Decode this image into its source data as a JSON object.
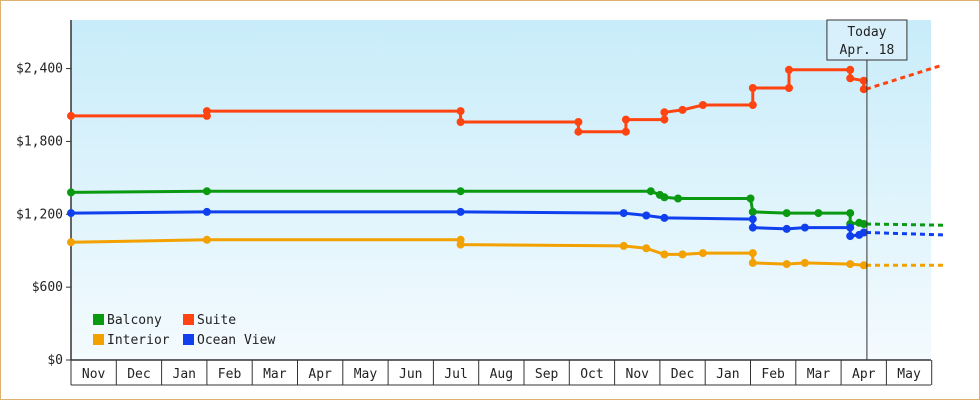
{
  "chart_data": {
    "type": "line",
    "title": "",
    "xlabel": "",
    "ylabel": "",
    "ylim": [
      0,
      2800
    ],
    "y_ticks": [
      "$0",
      "$600",
      "$1,200",
      "$1,800",
      "$2,400"
    ],
    "y_tick_values": [
      0,
      600,
      1200,
      1800,
      2400
    ],
    "x_domain": [
      "Oct 30",
      "May 31"
    ],
    "months": [
      "Nov",
      "Dec",
      "Jan",
      "Feb",
      "Mar",
      "Apr",
      "May",
      "Jun",
      "Jul",
      "Aug",
      "Sep",
      "Oct",
      "Nov",
      "Dec",
      "Jan",
      "Feb",
      "Mar",
      "Apr",
      "May"
    ],
    "today": {
      "label": "Today",
      "date": "Apr. 18",
      "month_index": 17,
      "day_fraction": 0.57
    },
    "grid": false,
    "legend_position": "bottom-left",
    "series": [
      {
        "name": "Suite",
        "color": "#ff4411",
        "points": [
          [
            0,
            2010
          ],
          [
            3,
            2010
          ],
          [
            3,
            2050
          ],
          [
            8.6,
            2050
          ],
          [
            8.6,
            1960
          ],
          [
            11.2,
            1960
          ],
          [
            11.2,
            1880
          ],
          [
            12.25,
            1880
          ],
          [
            12.25,
            1980
          ],
          [
            13.1,
            1980
          ],
          [
            13.1,
            2040
          ],
          [
            13.5,
            2060
          ],
          [
            13.95,
            2100
          ],
          [
            15.05,
            2100
          ],
          [
            15.05,
            2240
          ],
          [
            15.85,
            2240
          ],
          [
            15.85,
            2390
          ],
          [
            17.2,
            2390
          ],
          [
            17.2,
            2320
          ],
          [
            17.5,
            2300
          ],
          [
            17.5,
            2230
          ]
        ],
        "projection": [
          [
            17.55,
            2230
          ],
          [
            19.25,
            2430
          ]
        ]
      },
      {
        "name": "Balcony",
        "color": "#0a9a12",
        "points": [
          [
            0,
            1380
          ],
          [
            3,
            1390
          ],
          [
            8.6,
            1390
          ],
          [
            12.8,
            1390
          ],
          [
            13.0,
            1360
          ],
          [
            13.1,
            1340
          ],
          [
            13.4,
            1330
          ],
          [
            15.0,
            1330
          ],
          [
            15.05,
            1220
          ],
          [
            15.8,
            1210
          ],
          [
            16.5,
            1210
          ],
          [
            17.2,
            1210
          ],
          [
            17.2,
            1120
          ],
          [
            17.4,
            1130
          ],
          [
            17.5,
            1120
          ]
        ],
        "projection": [
          [
            17.55,
            1120
          ],
          [
            19.25,
            1110
          ]
        ]
      },
      {
        "name": "Ocean View",
        "color": "#1040ee",
        "points": [
          [
            0,
            1210
          ],
          [
            3,
            1220
          ],
          [
            8.6,
            1220
          ],
          [
            12.2,
            1210
          ],
          [
            12.7,
            1190
          ],
          [
            13.1,
            1170
          ],
          [
            15.05,
            1160
          ],
          [
            15.05,
            1090
          ],
          [
            15.8,
            1080
          ],
          [
            16.2,
            1090
          ],
          [
            17.2,
            1090
          ],
          [
            17.2,
            1020
          ],
          [
            17.4,
            1030
          ],
          [
            17.5,
            1050
          ]
        ],
        "projection": [
          [
            17.55,
            1050
          ],
          [
            19.25,
            1030
          ]
        ]
      },
      {
        "name": "Interior",
        "color": "#f2a100",
        "points": [
          [
            0,
            970
          ],
          [
            3,
            990
          ],
          [
            8.6,
            990
          ],
          [
            8.6,
            950
          ],
          [
            12.2,
            940
          ],
          [
            12.7,
            920
          ],
          [
            13.1,
            870
          ],
          [
            13.5,
            870
          ],
          [
            13.95,
            880
          ],
          [
            15.05,
            880
          ],
          [
            15.05,
            800
          ],
          [
            15.8,
            790
          ],
          [
            16.2,
            800
          ],
          [
            17.2,
            790
          ],
          [
            17.5,
            780
          ]
        ],
        "projection": [
          [
            17.55,
            780
          ],
          [
            19.25,
            780
          ]
        ]
      }
    ]
  },
  "legend": [
    {
      "name": "Balcony",
      "color": "#0a9a12"
    },
    {
      "name": "Suite",
      "color": "#ff4411"
    },
    {
      "name": "Interior",
      "color": "#f2a100"
    },
    {
      "name": "Ocean View",
      "color": "#1040ee"
    }
  ]
}
